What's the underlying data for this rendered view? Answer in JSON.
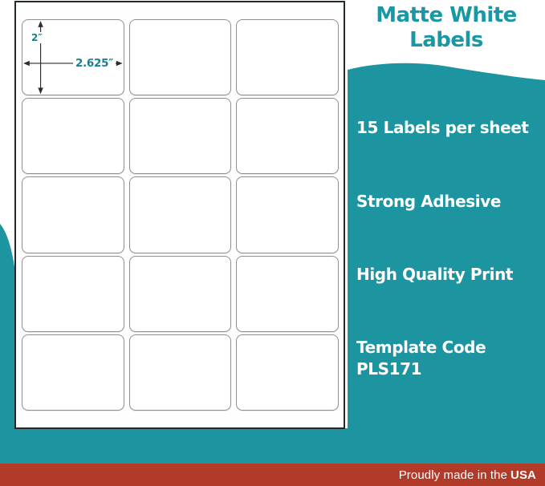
{
  "title": {
    "line1": "Matte White",
    "line2": "Labels"
  },
  "features": [
    {
      "label": "15 Labels per sheet"
    },
    {
      "label": "Strong Adhesive"
    },
    {
      "label": "High Quality Print"
    },
    {
      "label": "Template Code",
      "label2": "PLS171"
    }
  ],
  "dimensions": {
    "height": "2″",
    "width": "2.625″"
  },
  "sheet": {
    "rows": 5,
    "cols": 3,
    "labels_per_sheet": 15
  },
  "footer": {
    "prefix": "Proudly made in the",
    "bold": "USA"
  },
  "colors": {
    "teal_background": "#1d95a1",
    "title_teal": "#1898a6",
    "banner_red": "#b13a29",
    "dimension_text_teal": "#17818f"
  }
}
